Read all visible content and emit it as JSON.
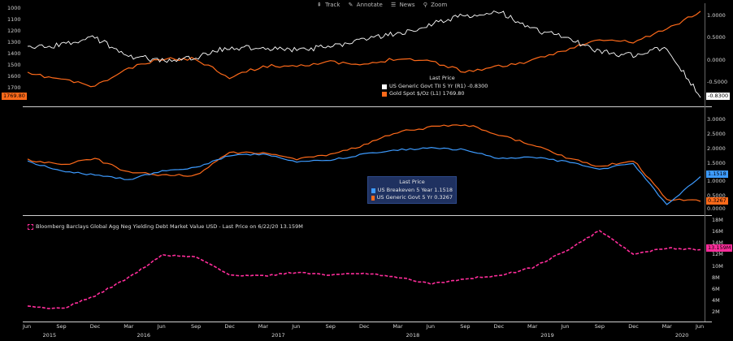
{
  "toolbar": {
    "items": [
      {
        "icon": "track-icon",
        "glyph": "⇞",
        "label": "Track"
      },
      {
        "icon": "annotate-icon",
        "glyph": "✎",
        "label": "Annotate"
      },
      {
        "icon": "news-icon",
        "glyph": "☰",
        "label": "News"
      },
      {
        "icon": "zoom-icon",
        "glyph": "⚲",
        "label": "Zoom"
      }
    ]
  },
  "panel1": {
    "legend_title": "Last Price",
    "legend_rows": [
      {
        "label": "US Generic Govt TII 5 Yr  (R1)  -0.8300",
        "color": "#ffffff"
      },
      {
        "label": "Gold Spot $/Oz  (L1)            1769.80",
        "color": "#ff6a1a"
      }
    ],
    "right_ticks": [
      "1.0000",
      "0.5000",
      "0.0000",
      "-0.5000"
    ],
    "left_ticks": [
      "1000",
      "1100",
      "1200",
      "1300",
      "1400",
      "1500",
      "1600",
      "1700",
      "1800"
    ],
    "right_value": "-0.8300",
    "left_value": "1769.80"
  },
  "panel2": {
    "legend_title": "Last Price",
    "legend_rows": [
      {
        "label": "US Breakeven 5 Year  1.1518",
        "color": "#3d9bff"
      },
      {
        "label": "US Generic Govt 5 Yr  0.3267",
        "color": "#ff6a1a"
      }
    ],
    "right_ticks": [
      "3.0000",
      "2.5000",
      "2.0000",
      "1.5000",
      "1.0000",
      "0.5000",
      "0.0000"
    ],
    "value_blue": "1.1518",
    "value_orange": "0.3267"
  },
  "panel3": {
    "legend": "Bloomberg Barclays Global Agg Neg Yielding Debt Market Value USD - Last Price on 6/22/20 13.159M",
    "legend_color": "#ff2d9b",
    "right_ticks": [
      "18M",
      "16M",
      "14M",
      "12M",
      "10M",
      "8M",
      "6M",
      "4M",
      "2M"
    ],
    "value": "13.159M"
  },
  "x_axis": {
    "months": [
      "Jun",
      "Sep",
      "Dec",
      "Mar",
      "Jun",
      "Sep",
      "Dec",
      "Mar",
      "Jun",
      "Sep",
      "Dec",
      "Mar",
      "Jun",
      "Sep",
      "Dec",
      "Mar",
      "Jun",
      "Sep",
      "Dec",
      "Mar",
      "Jun"
    ],
    "years": [
      "2015",
      "2016",
      "2017",
      "2018",
      "2019",
      "2020"
    ]
  },
  "chart_data": [
    {
      "type": "line",
      "panel": "top",
      "x": [
        "2015-06",
        "2015-09",
        "2015-12",
        "2016-03",
        "2016-06",
        "2016-09",
        "2016-12",
        "2017-03",
        "2017-06",
        "2017-09",
        "2017-12",
        "2018-03",
        "2018-06",
        "2018-09",
        "2018-12",
        "2019-03",
        "2019-06",
        "2019-09",
        "2019-12",
        "2020-03",
        "2020-06"
      ],
      "series": [
        {
          "name": "US Generic Govt TII 5 Yr",
          "axis": "right",
          "color": "#ffffff",
          "values": [
            0.25,
            0.35,
            0.5,
            0.1,
            0.0,
            0.05,
            0.3,
            0.25,
            0.25,
            0.3,
            0.5,
            0.6,
            0.8,
            1.0,
            1.1,
            0.7,
            0.5,
            0.2,
            0.1,
            0.3,
            -0.83
          ]
        },
        {
          "name": "Gold Spot $/Oz",
          "axis": "left",
          "color": "#ff6a1a",
          "values": [
            1180,
            1130,
            1060,
            1230,
            1320,
            1320,
            1150,
            1250,
            1260,
            1290,
            1260,
            1330,
            1300,
            1200,
            1250,
            1300,
            1410,
            1500,
            1480,
            1600,
            1769.8
          ]
        }
      ],
      "right_ylim": [
        -0.9,
        1.2
      ]
    },
    {
      "type": "line",
      "panel": "middle",
      "x": [
        "2015-06",
        "2015-09",
        "2015-12",
        "2016-03",
        "2016-06",
        "2016-09",
        "2016-12",
        "2017-03",
        "2017-06",
        "2017-09",
        "2017-12",
        "2018-03",
        "2018-06",
        "2018-09",
        "2018-12",
        "2019-03",
        "2019-06",
        "2019-09",
        "2019-12",
        "2020-03",
        "2020-06"
      ],
      "series": [
        {
          "name": "US Breakeven 5 Year",
          "color": "#3d9bff",
          "values": [
            1.65,
            1.35,
            1.2,
            1.05,
            1.35,
            1.45,
            1.85,
            1.9,
            1.65,
            1.7,
            1.9,
            2.05,
            2.1,
            2.05,
            1.75,
            1.8,
            1.65,
            1.4,
            1.6,
            0.2,
            1.1518
          ]
        },
        {
          "name": "US Generic Govt 5 Yr",
          "color": "#ff6a1a",
          "values": [
            1.7,
            1.55,
            1.75,
            1.3,
            1.2,
            1.2,
            1.95,
            1.95,
            1.75,
            1.9,
            2.2,
            2.65,
            2.8,
            2.9,
            2.55,
            2.2,
            1.8,
            1.5,
            1.7,
            0.4,
            0.3267
          ]
        }
      ],
      "ylim": [
        0,
        3.2
      ]
    },
    {
      "type": "line",
      "panel": "bottom",
      "x": [
        "2015-06",
        "2015-09",
        "2015-12",
        "2016-03",
        "2016-06",
        "2016-09",
        "2016-12",
        "2017-03",
        "2017-06",
        "2017-09",
        "2017-12",
        "2018-03",
        "2018-06",
        "2018-09",
        "2018-12",
        "2019-03",
        "2019-06",
        "2019-09",
        "2019-12",
        "2020-03",
        "2020-06"
      ],
      "series": [
        {
          "name": "Bloomberg Barclays Global Agg Neg Yielding Debt Market Value USD",
          "color": "#ff2d9b",
          "dashed": true,
          "values": [
            2.2,
            1.8,
            4.3,
            7.8,
            12.1,
            11.8,
            8.3,
            8.1,
            8.8,
            8.3,
            8.7,
            7.9,
            6.6,
            7.6,
            8.1,
            9.7,
            12.9,
            16.8,
            12.3,
            13.5,
            13.159
          ]
        }
      ],
      "ylim": [
        0,
        19
      ]
    }
  ]
}
